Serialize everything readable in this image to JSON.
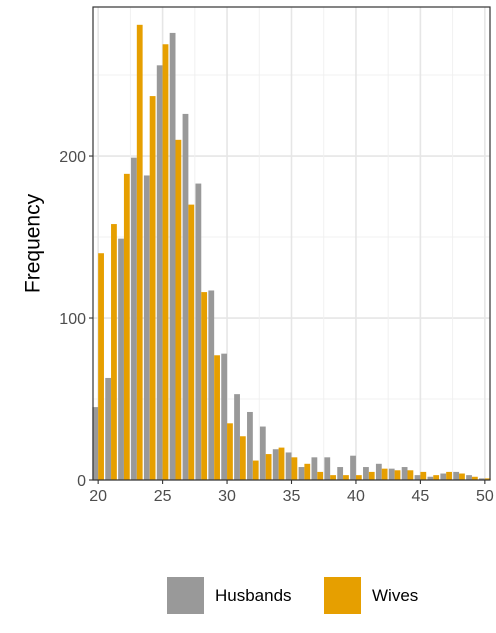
{
  "chart_data": {
    "type": "bar",
    "title": "",
    "xlabel": "",
    "ylabel": "Frequency",
    "xlim": [
      19.6,
      50.4
    ],
    "ylim": [
      0,
      292
    ],
    "x_ticks": [
      20,
      25,
      30,
      35,
      40,
      45,
      50
    ],
    "y_ticks": [
      0,
      100,
      200
    ],
    "grid": true,
    "legend_position": "bottom",
    "x": [
      20,
      21,
      22,
      23,
      24,
      25,
      26,
      27,
      28,
      29,
      30,
      31,
      32,
      33,
      34,
      35,
      36,
      37,
      38,
      39,
      40,
      41,
      42,
      43,
      44,
      45,
      46,
      47,
      48,
      49,
      50
    ],
    "series": [
      {
        "name": "Husbands",
        "color": "#999999",
        "values": [
          45,
          63,
          149,
          199,
          188,
          256,
          276,
          226,
          183,
          117,
          78,
          53,
          42,
          33,
          19,
          17,
          8,
          14,
          14,
          8,
          15,
          8,
          10,
          7,
          8,
          3,
          2,
          4,
          5,
          3,
          1
        ]
      },
      {
        "name": "Wives",
        "color": "#E69F00",
        "values": [
          140,
          158,
          189,
          281,
          237,
          269,
          210,
          170,
          116,
          77,
          35,
          27,
          12,
          16,
          20,
          14,
          10,
          5,
          3,
          3,
          3,
          5,
          7,
          6,
          6,
          5,
          3,
          5,
          4,
          2,
          1
        ]
      }
    ]
  }
}
